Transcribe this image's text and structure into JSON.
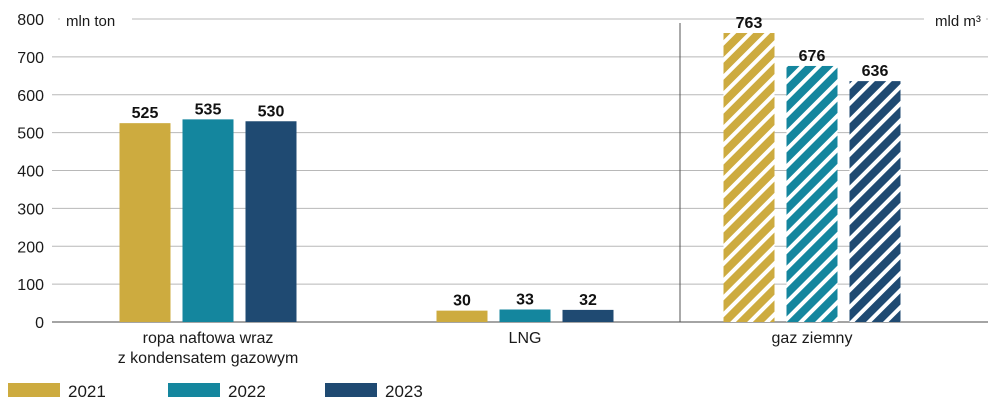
{
  "chart_data": {
    "type": "bar",
    "units": {
      "left": "mln ton",
      "right": "mld m³"
    },
    "ylim": [
      0,
      800
    ],
    "yticks": [
      0,
      100,
      200,
      300,
      400,
      500,
      600,
      700,
      800
    ],
    "grid": true,
    "legend_position": "bottom-left",
    "categories": [
      {
        "lines": [
          "ropa naftowa wraz",
          "z kondensatem gazowym"
        ],
        "axis": "left",
        "hatched": false
      },
      {
        "lines": [
          "LNG"
        ],
        "axis": "left",
        "hatched": false
      },
      {
        "lines": [
          "gaz ziemny"
        ],
        "axis": "right",
        "hatched": true
      }
    ],
    "series": [
      {
        "name": "2021",
        "color": "#CDAB3F",
        "values": [
          525,
          30,
          763
        ]
      },
      {
        "name": "2022",
        "color": "#14869E",
        "values": [
          535,
          33,
          676
        ]
      },
      {
        "name": "2023",
        "color": "#1F4A72",
        "values": [
          530,
          32,
          636
        ]
      }
    ]
  }
}
